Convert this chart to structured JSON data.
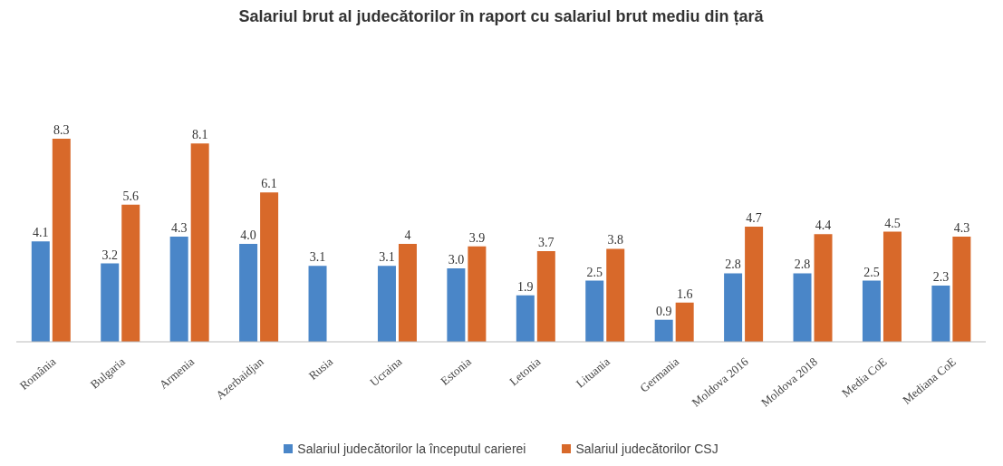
{
  "chart_data": {
    "type": "bar",
    "title": "Salariul brut al judecătorilor în raport cu salariul brut mediu din țară",
    "categories": [
      "România",
      "Bulgaria",
      "Armenia",
      "Azerbaidjan",
      "Rusia",
      "Ucraina",
      "Estonia",
      "Letonia",
      "Lituania",
      "Germania",
      "Moldova 2016",
      "Moldova 2018",
      "Media CoE",
      "Mediana CoE"
    ],
    "series": [
      {
        "name": "Salariul judecătorilor la începutul carierei",
        "color": "#4a86c8",
        "values": [
          4.1,
          3.2,
          4.3,
          4.0,
          3.1,
          3.1,
          3.0,
          1.9,
          2.5,
          0.9,
          2.8,
          2.8,
          2.5,
          2.3
        ],
        "value_labels": [
          "4.1",
          "3.2",
          "4.3",
          "4.0",
          "3.1",
          "3.1",
          "3.0",
          "1.9",
          "2.5",
          "0.9",
          "2.8",
          "2.8",
          "2.5",
          "2.3"
        ]
      },
      {
        "name": "Salariul judecătorilor CSJ",
        "color": "#d8692a",
        "values": [
          8.3,
          5.6,
          8.1,
          6.1,
          null,
          4,
          3.9,
          3.7,
          3.8,
          1.6,
          4.7,
          4.4,
          4.5,
          4.3
        ],
        "value_labels": [
          "8.3",
          "5.6",
          "8.1",
          "6.1",
          null,
          "4",
          "3.9",
          "3.7",
          "3.8",
          "1.6",
          "4.7",
          "4.4",
          "4.5",
          "4.3"
        ]
      }
    ],
    "legend": "bottom"
  }
}
